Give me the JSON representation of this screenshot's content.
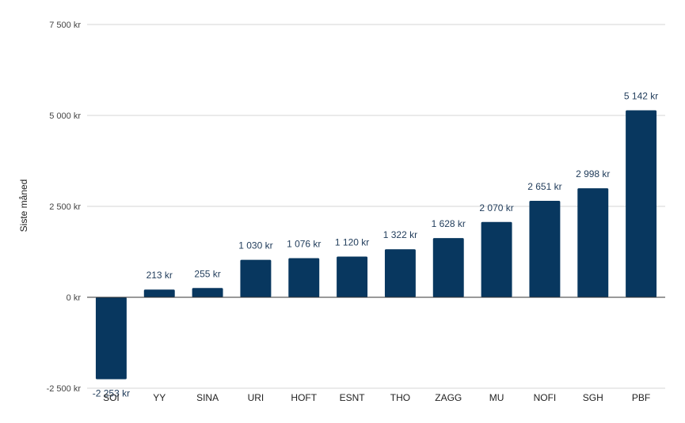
{
  "chart_data": {
    "type": "bar",
    "ylabel": "Siste måned",
    "xlabel": "",
    "title": "",
    "categories": [
      "SOI",
      "YY",
      "SINA",
      "URI",
      "HOFT",
      "ESNT",
      "THO",
      "ZAGG",
      "MU",
      "NOFI",
      "SGH",
      "PBF"
    ],
    "values": [
      -2253,
      213,
      255,
      1030,
      1076,
      1120,
      1322,
      1628,
      2070,
      2651,
      2998,
      5142
    ],
    "data_labels": [
      "-2 253 kr",
      "213 kr",
      "255 kr",
      "1 030 kr",
      "1 076 kr",
      "1 120 kr",
      "1 322 kr",
      "1 628 kr",
      "2 070 kr",
      "2 651 kr",
      "2 998 kr",
      "5 142 kr"
    ],
    "yticks": [
      -2500,
      0,
      2500,
      5000,
      7500
    ],
    "ytick_labels": [
      "-2 500 kr",
      "0 kr",
      "2 500 kr",
      "5 000 kr",
      "7 500 kr"
    ],
    "ylim": [
      -2500,
      7500
    ],
    "grid": true,
    "legend": "none",
    "bar_color": "#08375f"
  }
}
